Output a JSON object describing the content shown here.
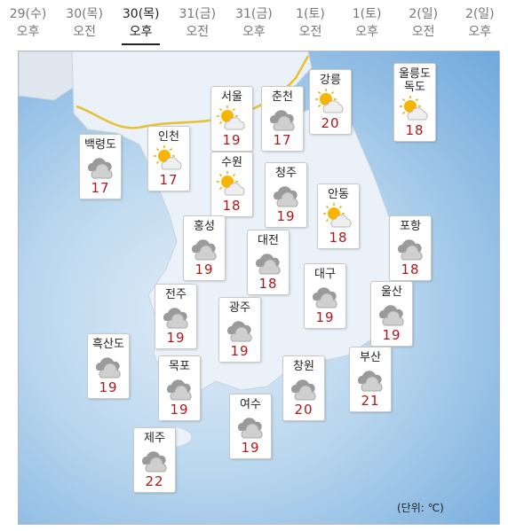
{
  "tabs": [
    {
      "date": "29(수)",
      "period": "오후"
    },
    {
      "date": "30(목)",
      "period": "오전"
    },
    {
      "date": "30(목)",
      "period": "오후"
    },
    {
      "date": "31(금)",
      "period": "오전"
    },
    {
      "date": "31(금)",
      "period": "오후"
    },
    {
      "date": "1(토)",
      "period": "오전"
    },
    {
      "date": "1(토)",
      "period": "오후"
    },
    {
      "date": "2(일)",
      "period": "오전"
    },
    {
      "date": "2(일)",
      "period": "오후"
    }
  ],
  "selected_tab": 2,
  "cities": [
    {
      "name": "서울",
      "temp": 19,
      "icon": "partly-cloudy"
    },
    {
      "name": "춘천",
      "temp": 17,
      "icon": "cloudy"
    },
    {
      "name": "강릉",
      "temp": 20,
      "icon": "partly-cloudy"
    },
    {
      "name": "울릉도\n독도",
      "temp": 18,
      "icon": "partly-cloudy"
    },
    {
      "name": "백령도",
      "temp": 17,
      "icon": "cloudy"
    },
    {
      "name": "인천",
      "temp": 17,
      "icon": "partly-cloudy"
    },
    {
      "name": "수원",
      "temp": 18,
      "icon": "partly-cloudy"
    },
    {
      "name": "청주",
      "temp": 19,
      "icon": "cloudy"
    },
    {
      "name": "안동",
      "temp": 18,
      "icon": "partly-cloudy"
    },
    {
      "name": "홍성",
      "temp": 19,
      "icon": "cloudy"
    },
    {
      "name": "대전",
      "temp": 18,
      "icon": "cloudy"
    },
    {
      "name": "포항",
      "temp": 18,
      "icon": "cloudy"
    },
    {
      "name": "대구",
      "temp": 19,
      "icon": "cloudy"
    },
    {
      "name": "전주",
      "temp": 19,
      "icon": "cloudy"
    },
    {
      "name": "광주",
      "temp": 19,
      "icon": "cloudy"
    },
    {
      "name": "울산",
      "temp": 19,
      "icon": "cloudy"
    },
    {
      "name": "흑산도",
      "temp": 19,
      "icon": "cloudy"
    },
    {
      "name": "목포",
      "temp": 19,
      "icon": "cloudy"
    },
    {
      "name": "창원",
      "temp": 20,
      "icon": "cloudy"
    },
    {
      "name": "부산",
      "temp": 21,
      "icon": "cloudy"
    },
    {
      "name": "여수",
      "temp": 19,
      "icon": "cloudy"
    },
    {
      "name": "제주",
      "temp": 22,
      "icon": "cloudy"
    }
  ],
  "unit_note": "(단위: ℃)"
}
